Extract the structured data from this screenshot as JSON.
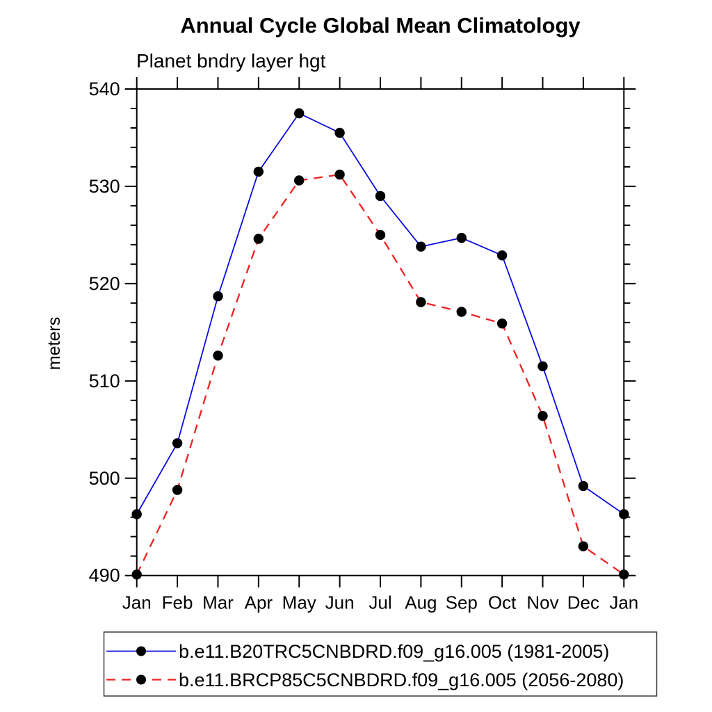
{
  "chart_data": {
    "type": "line",
    "title": "Annual Cycle Global Mean Climatology",
    "subtitle": "Planet bndry layer hgt",
    "ylabel": "meters",
    "xlabel": "",
    "categories": [
      "Jan",
      "Feb",
      "Mar",
      "Apr",
      "May",
      "Jun",
      "Jul",
      "Aug",
      "Sep",
      "Oct",
      "Nov",
      "Dec",
      "Jan"
    ],
    "series": [
      {
        "name": "b.e11.B20TRC5CNBDRD.f09_g16.005 (1981-2005)",
        "color": "#0b0be1",
        "line_style": "solid",
        "line_width": 1.8,
        "marker": "filled-circle",
        "marker_color": "#000000",
        "values": [
          496.3,
          503.6,
          518.7,
          531.5,
          537.5,
          535.5,
          529.0,
          523.8,
          524.7,
          522.9,
          511.5,
          499.2,
          496.3
        ]
      },
      {
        "name": "b.e11.BRCP85C5CNBDRD.f09_g16.005 (2056-2080)",
        "color": "#ee2222",
        "line_style": "dashed",
        "line_width": 2.3,
        "marker": "filled-circle",
        "marker_color": "#000000",
        "values": [
          490.1,
          498.8,
          512.6,
          524.6,
          530.6,
          531.2,
          525.0,
          518.1,
          517.1,
          515.9,
          506.4,
          493.0,
          490.1
        ]
      }
    ],
    "ylim": [
      490,
      540
    ],
    "y_major_ticks": [
      490,
      500,
      510,
      520,
      530,
      540
    ],
    "y_minor_step": 2,
    "grid": false,
    "legend_position": "bottom",
    "frame_color": "#000000",
    "background_color": "#ffffff"
  }
}
